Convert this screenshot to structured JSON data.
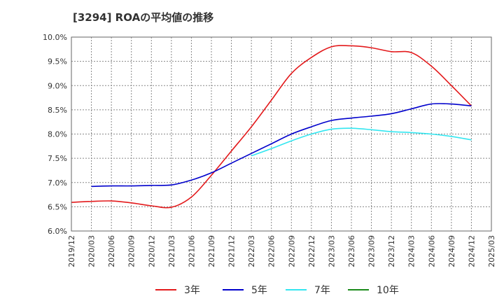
{
  "chart_data": {
    "type": "line",
    "title": "[3294]  ROAの平均値の推移",
    "xlabel": "",
    "ylabel": "",
    "ylim": [
      6.0,
      10.0
    ],
    "y_ticks": [
      "6.0%",
      "6.5%",
      "7.0%",
      "7.5%",
      "8.0%",
      "8.5%",
      "9.0%",
      "9.5%",
      "10.0%"
    ],
    "x_ticks": [
      "2019/12",
      "2020/03",
      "2020/06",
      "2020/09",
      "2020/12",
      "2021/03",
      "2021/06",
      "2021/09",
      "2021/12",
      "2022/03",
      "2022/06",
      "2022/09",
      "2022/12",
      "2023/03",
      "2023/06",
      "2023/09",
      "2023/12",
      "2024/03",
      "2024/06",
      "2024/09",
      "2024/12",
      "2025/03"
    ],
    "grid": true,
    "legend_position": "bottom",
    "series": [
      {
        "name": "3年",
        "color": "#e31a1c",
        "x": [
          "2019/12",
          "2020/03",
          "2020/06",
          "2020/09",
          "2020/12",
          "2021/03",
          "2021/06",
          "2021/09",
          "2021/12",
          "2022/03",
          "2022/06",
          "2022/09",
          "2022/12",
          "2023/03",
          "2023/06",
          "2023/09",
          "2023/12",
          "2024/03",
          "2024/06",
          "2024/09",
          "2024/12"
        ],
        "values": [
          6.59,
          6.61,
          6.62,
          6.58,
          6.52,
          6.49,
          6.7,
          7.15,
          7.65,
          8.15,
          8.7,
          9.25,
          9.58,
          9.8,
          9.82,
          9.78,
          9.7,
          9.68,
          9.4,
          9.0,
          8.58
        ]
      },
      {
        "name": "5年",
        "color": "#0000cc",
        "x": [
          "2020/03",
          "2020/06",
          "2020/09",
          "2020/12",
          "2021/03",
          "2021/06",
          "2021/09",
          "2021/12",
          "2022/03",
          "2022/06",
          "2022/09",
          "2022/12",
          "2023/03",
          "2023/06",
          "2023/09",
          "2023/12",
          "2024/03",
          "2024/06",
          "2024/09",
          "2024/12"
        ],
        "values": [
          6.92,
          6.93,
          6.93,
          6.94,
          6.95,
          7.05,
          7.2,
          7.4,
          7.6,
          7.8,
          8.0,
          8.15,
          8.28,
          8.33,
          8.37,
          8.42,
          8.52,
          8.62,
          8.62,
          8.58
        ]
      },
      {
        "name": "7年",
        "color": "#33e6f0",
        "x": [
          "2022/03",
          "2022/06",
          "2022/09",
          "2022/12",
          "2023/03",
          "2023/06",
          "2023/09",
          "2023/12",
          "2024/03",
          "2024/06",
          "2024/09",
          "2024/12"
        ],
        "values": [
          7.55,
          7.7,
          7.86,
          8.0,
          8.1,
          8.12,
          8.09,
          8.05,
          8.03,
          8.0,
          7.95,
          7.88
        ]
      },
      {
        "name": "10年",
        "color": "#1a8a1a",
        "x": [],
        "values": []
      }
    ]
  }
}
